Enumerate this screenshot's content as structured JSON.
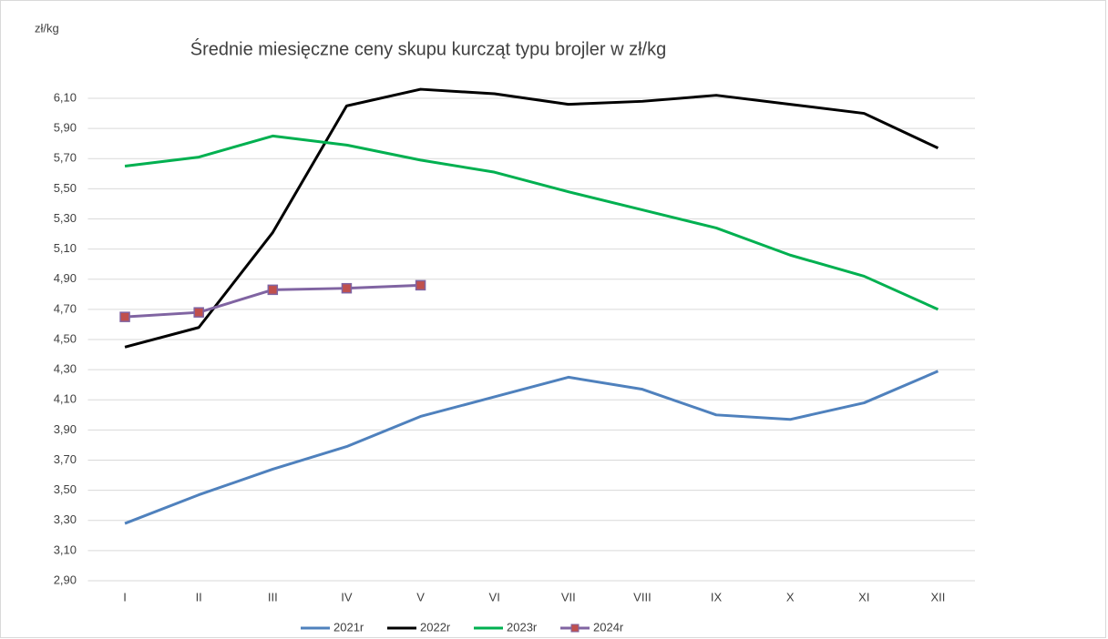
{
  "chart_data": {
    "type": "line",
    "title": "Średnie miesięczne ceny skupu kurcząt typu brojler w zł/kg",
    "y_axis_label": "zł/kg",
    "categories": [
      "I",
      "II",
      "III",
      "IV",
      "V",
      "VI",
      "VII",
      "VIII",
      "IX",
      "X",
      "XI",
      "XII"
    ],
    "series": [
      {
        "name": "2021r",
        "color": "#4f81bd",
        "values": [
          3.28,
          3.47,
          3.64,
          3.79,
          3.99,
          4.12,
          4.25,
          4.17,
          4.0,
          3.97,
          4.08,
          4.29
        ]
      },
      {
        "name": "2022r",
        "color": "#000000",
        "values": [
          4.45,
          4.58,
          5.21,
          6.05,
          6.16,
          6.13,
          6.06,
          6.08,
          6.12,
          6.06,
          6.0,
          5.77
        ]
      },
      {
        "name": "2023r",
        "color": "#00b050",
        "values": [
          5.65,
          5.71,
          5.85,
          5.79,
          5.69,
          5.61,
          5.48,
          5.36,
          5.24,
          5.06,
          4.92,
          4.7
        ]
      },
      {
        "name": "2024r",
        "color": "#8064a2",
        "marker": "square",
        "marker_color": "#c0504d",
        "values": [
          4.65,
          4.68,
          4.83,
          4.84,
          4.86,
          null,
          null,
          null,
          null,
          null,
          null,
          null
        ]
      }
    ],
    "ylim": [
      2.9,
      6.1
    ],
    "yticks": [
      {
        "value": 2.9,
        "label": "2,90"
      },
      {
        "value": 3.1,
        "label": "3,10"
      },
      {
        "value": 3.3,
        "label": "3,30"
      },
      {
        "value": 3.5,
        "label": "3,50"
      },
      {
        "value": 3.7,
        "label": "3,70"
      },
      {
        "value": 3.9,
        "label": "3,90"
      },
      {
        "value": 4.1,
        "label": "4,10"
      },
      {
        "value": 4.3,
        "label": "4,30"
      },
      {
        "value": 4.5,
        "label": "4,50"
      },
      {
        "value": 4.7,
        "label": "4,70"
      },
      {
        "value": 4.9,
        "label": "4,90"
      },
      {
        "value": 5.1,
        "label": "5,10"
      },
      {
        "value": 5.3,
        "label": "5,30"
      },
      {
        "value": 5.5,
        "label": "5,50"
      },
      {
        "value": 5.7,
        "label": "5,70"
      },
      {
        "value": 5.9,
        "label": "5,90"
      },
      {
        "value": 6.1,
        "label": "6,10"
      }
    ],
    "grid": true,
    "legend": "bottom"
  }
}
